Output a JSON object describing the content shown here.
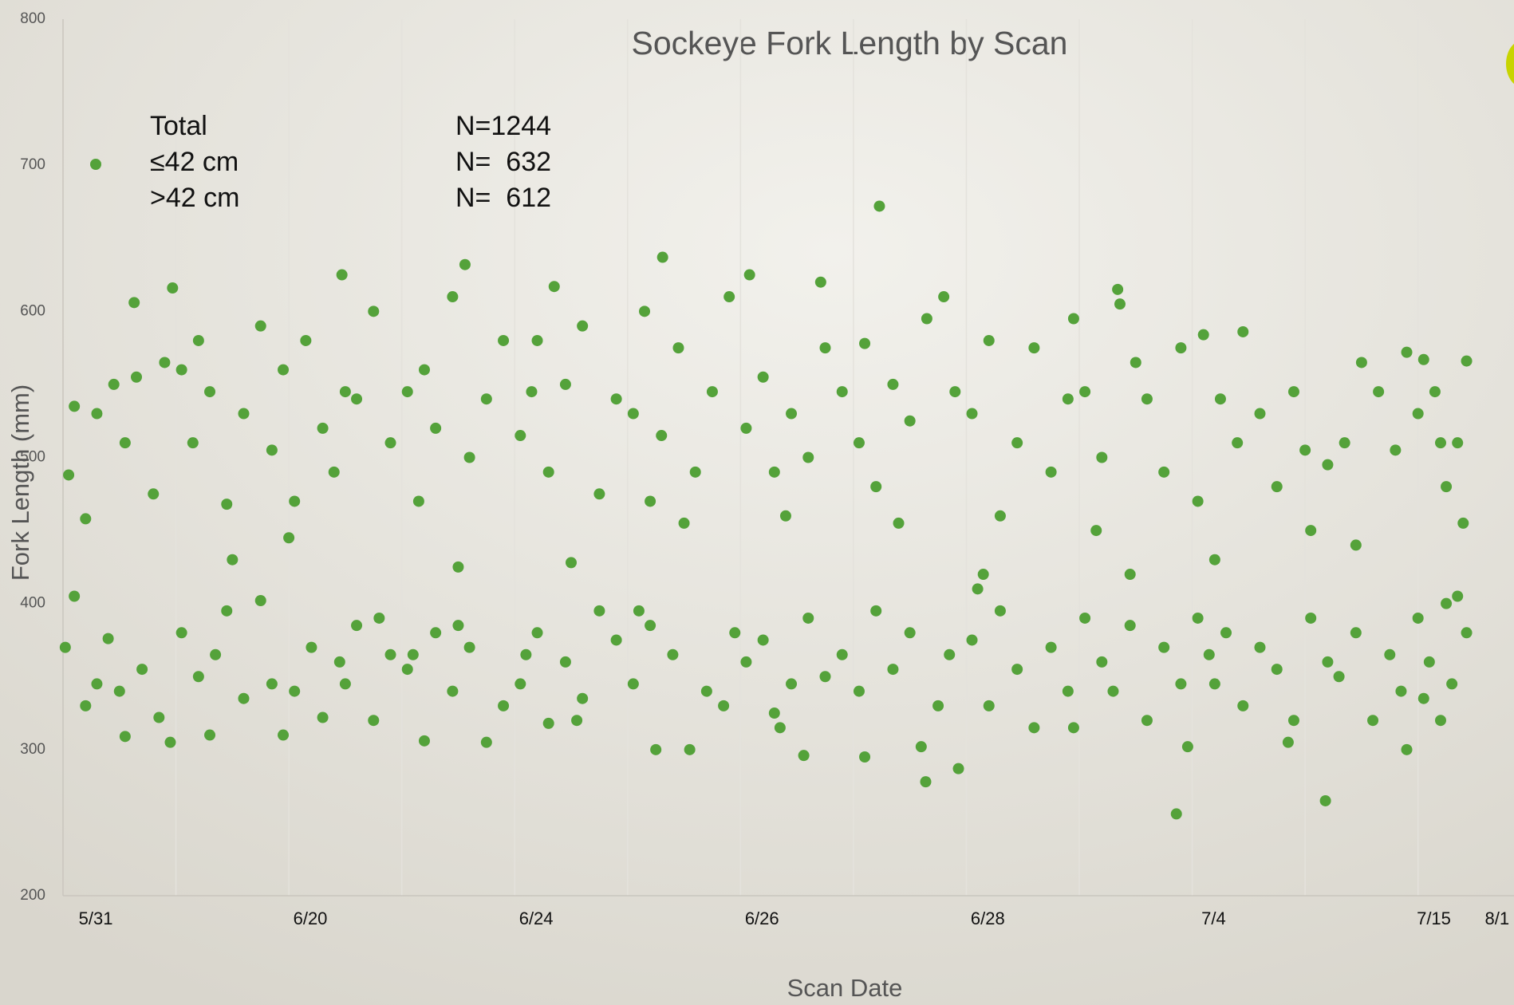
{
  "chart_data": {
    "type": "scatter",
    "title": "Sockeye Fork Length by Scan",
    "xlabel": "Scan Date",
    "ylabel": "Fork Length (mm)",
    "legend": [
      {
        "label": "Total",
        "n": "N=1244"
      },
      {
        "label": "≤42 cm",
        "n": "N=  632"
      },
      {
        "label": ">42 cm",
        "n": "N=  612"
      }
    ],
    "xlim": [
      0,
      12.85
    ],
    "ylim": [
      200,
      800
    ],
    "yticks": [
      200,
      300,
      400,
      500,
      600,
      700,
      800
    ],
    "xticks": [
      {
        "value": 0.29,
        "label": "5/31"
      },
      {
        "value": 2.19,
        "label": "6/20"
      },
      {
        "value": 4.19,
        "label": "6/24"
      },
      {
        "value": 6.19,
        "label": "6/26"
      },
      {
        "value": 8.19,
        "label": "6/28"
      },
      {
        "value": 10.19,
        "label": "7/4"
      },
      {
        "value": 12.14,
        "label": "7/15"
      },
      {
        "value": 12.7,
        "label": "8/1"
      }
    ],
    "x_gridlines": [
      1,
      2,
      3,
      4,
      5,
      6,
      7,
      8,
      9,
      10,
      11,
      12
    ],
    "series": [
      {
        "name": "≤42 cm",
        "color": "#54a23a",
        "x": [
          0.05,
          0.1,
          0.2,
          0.3,
          0.45,
          0.55,
          0.65,
          0.8,
          0.9,
          0.63,
          0.97,
          0.02,
          0.1,
          0.2,
          0.3,
          0.4,
          0.55,
          0.7,
          0.85,
          0.95,
          0.5,
          1.05,
          1.15,
          1.3,
          1.45,
          1.6,
          1.75,
          1.85,
          1.95,
          1.2,
          1.5,
          1.05,
          1.2,
          1.3,
          1.45,
          1.6,
          1.75,
          1.85,
          1.95,
          1.35,
          2.05,
          2.15,
          2.3,
          2.4,
          2.47,
          2.6,
          2.75,
          2.9,
          2.5,
          2.0,
          2.05,
          2.2,
          2.3,
          2.45,
          2.6,
          2.75,
          2.9,
          2.5,
          2.8,
          3.05,
          3.2,
          3.3,
          3.45,
          3.56,
          3.6,
          3.75,
          3.9,
          3.15,
          3.5,
          3.05,
          3.2,
          3.3,
          3.45,
          3.6,
          3.75,
          3.9,
          3.5,
          3.1,
          4.05,
          4.15,
          4.3,
          4.35,
          4.45,
          4.6,
          4.75,
          4.9,
          4.2,
          4.5,
          4.05,
          4.2,
          4.3,
          4.45,
          4.6,
          4.75,
          4.9,
          4.55,
          4.1,
          5.05,
          5.15,
          5.3,
          5.31,
          5.45,
          5.6,
          5.75,
          5.9,
          5.2,
          5.5,
          5.05,
          5.2,
          5.25,
          5.4,
          5.55,
          5.7,
          5.85,
          5.95,
          5.1,
          6.05,
          6.08,
          6.2,
          6.3,
          6.45,
          6.6,
          6.75,
          6.9,
          6.71,
          6.4,
          6.05,
          6.2,
          6.3,
          6.45,
          6.56,
          6.6,
          6.75,
          6.9,
          6.35,
          7.05,
          7.1,
          7.2,
          7.23,
          7.35,
          7.5,
          7.65,
          7.8,
          7.9,
          7.4,
          7.05,
          7.1,
          7.2,
          7.35,
          7.5,
          7.64,
          7.75,
          7.93,
          7.85,
          7.6,
          8.05,
          8.2,
          8.3,
          8.45,
          8.6,
          8.75,
          8.9,
          8.95,
          8.15,
          8.05,
          8.2,
          8.3,
          8.45,
          8.6,
          8.75,
          8.9,
          8.95,
          8.1,
          9.05,
          9.2,
          9.34,
          9.36,
          9.5,
          9.6,
          9.75,
          9.9,
          9.45,
          9.15,
          9.05,
          9.2,
          9.3,
          9.45,
          9.6,
          9.75,
          9.86,
          9.96,
          9.9,
          10.05,
          10.1,
          10.25,
          10.4,
          10.45,
          10.6,
          10.75,
          10.9,
          10.2,
          10.05,
          10.2,
          10.3,
          10.45,
          10.6,
          10.75,
          10.9,
          10.85,
          10.15,
          11.05,
          11.2,
          11.35,
          11.5,
          11.65,
          11.8,
          11.9,
          11.0,
          11.45,
          11.05,
          11.18,
          11.3,
          11.45,
          11.6,
          11.75,
          11.9,
          11.85,
          11.2,
          12.0,
          12.05,
          12.15,
          12.25,
          12.35,
          12.43,
          12.2,
          12.4,
          12.0,
          12.1,
          12.2,
          12.3,
          12.35,
          12.43,
          12.05,
          12.25
        ],
        "values": [
          488,
          535,
          458,
          530,
          550,
          510,
          555,
          475,
          565,
          606,
          616,
          370,
          405,
          330,
          345,
          376,
          309,
          355,
          322,
          305,
          340,
          560,
          510,
          545,
          468,
          530,
          590,
          505,
          560,
          580,
          430,
          380,
          350,
          310,
          395,
          335,
          402,
          345,
          310,
          365,
          470,
          580,
          520,
          490,
          625,
          540,
          600,
          510,
          545,
          445,
          340,
          370,
          322,
          360,
          385,
          320,
          365,
          345,
          390,
          545,
          560,
          520,
          610,
          632,
          500,
          540,
          580,
          470,
          425,
          355,
          306,
          380,
          340,
          370,
          305,
          330,
          385,
          365,
          515,
          545,
          490,
          617,
          550,
          590,
          475,
          540,
          580,
          428,
          345,
          380,
          318,
          360,
          335,
          395,
          375,
          320,
          365,
          530,
          600,
          515,
          637,
          575,
          490,
          545,
          610,
          470,
          455,
          345,
          385,
          300,
          365,
          300,
          340,
          330,
          380,
          395,
          520,
          625,
          555,
          490,
          530,
          500,
          575,
          545,
          620,
          460,
          360,
          375,
          325,
          345,
          296,
          390,
          350,
          365,
          315,
          510,
          578,
          480,
          672,
          550,
          525,
          595,
          610,
          545,
          455,
          340,
          295,
          395,
          355,
          380,
          278,
          330,
          287,
          365,
          302,
          530,
          580,
          460,
          510,
          575,
          490,
          540,
          595,
          420,
          375,
          330,
          395,
          355,
          315,
          370,
          340,
          315,
          410,
          545,
          500,
          615,
          605,
          565,
          540,
          490,
          575,
          420,
          450,
          390,
          360,
          340,
          385,
          320,
          370,
          256,
          302,
          345,
          470,
          584,
          540,
          510,
          586,
          530,
          480,
          545,
          430,
          390,
          345,
          380,
          330,
          370,
          355,
          320,
          305,
          365,
          450,
          495,
          510,
          565,
          545,
          505,
          572,
          505,
          440,
          390,
          265,
          350,
          380,
          320,
          365,
          300,
          340,
          360,
          530,
          567,
          545,
          480,
          510,
          566,
          510,
          455,
          390,
          360,
          320,
          345,
          405,
          380,
          335,
          400
        ]
      }
    ]
  }
}
